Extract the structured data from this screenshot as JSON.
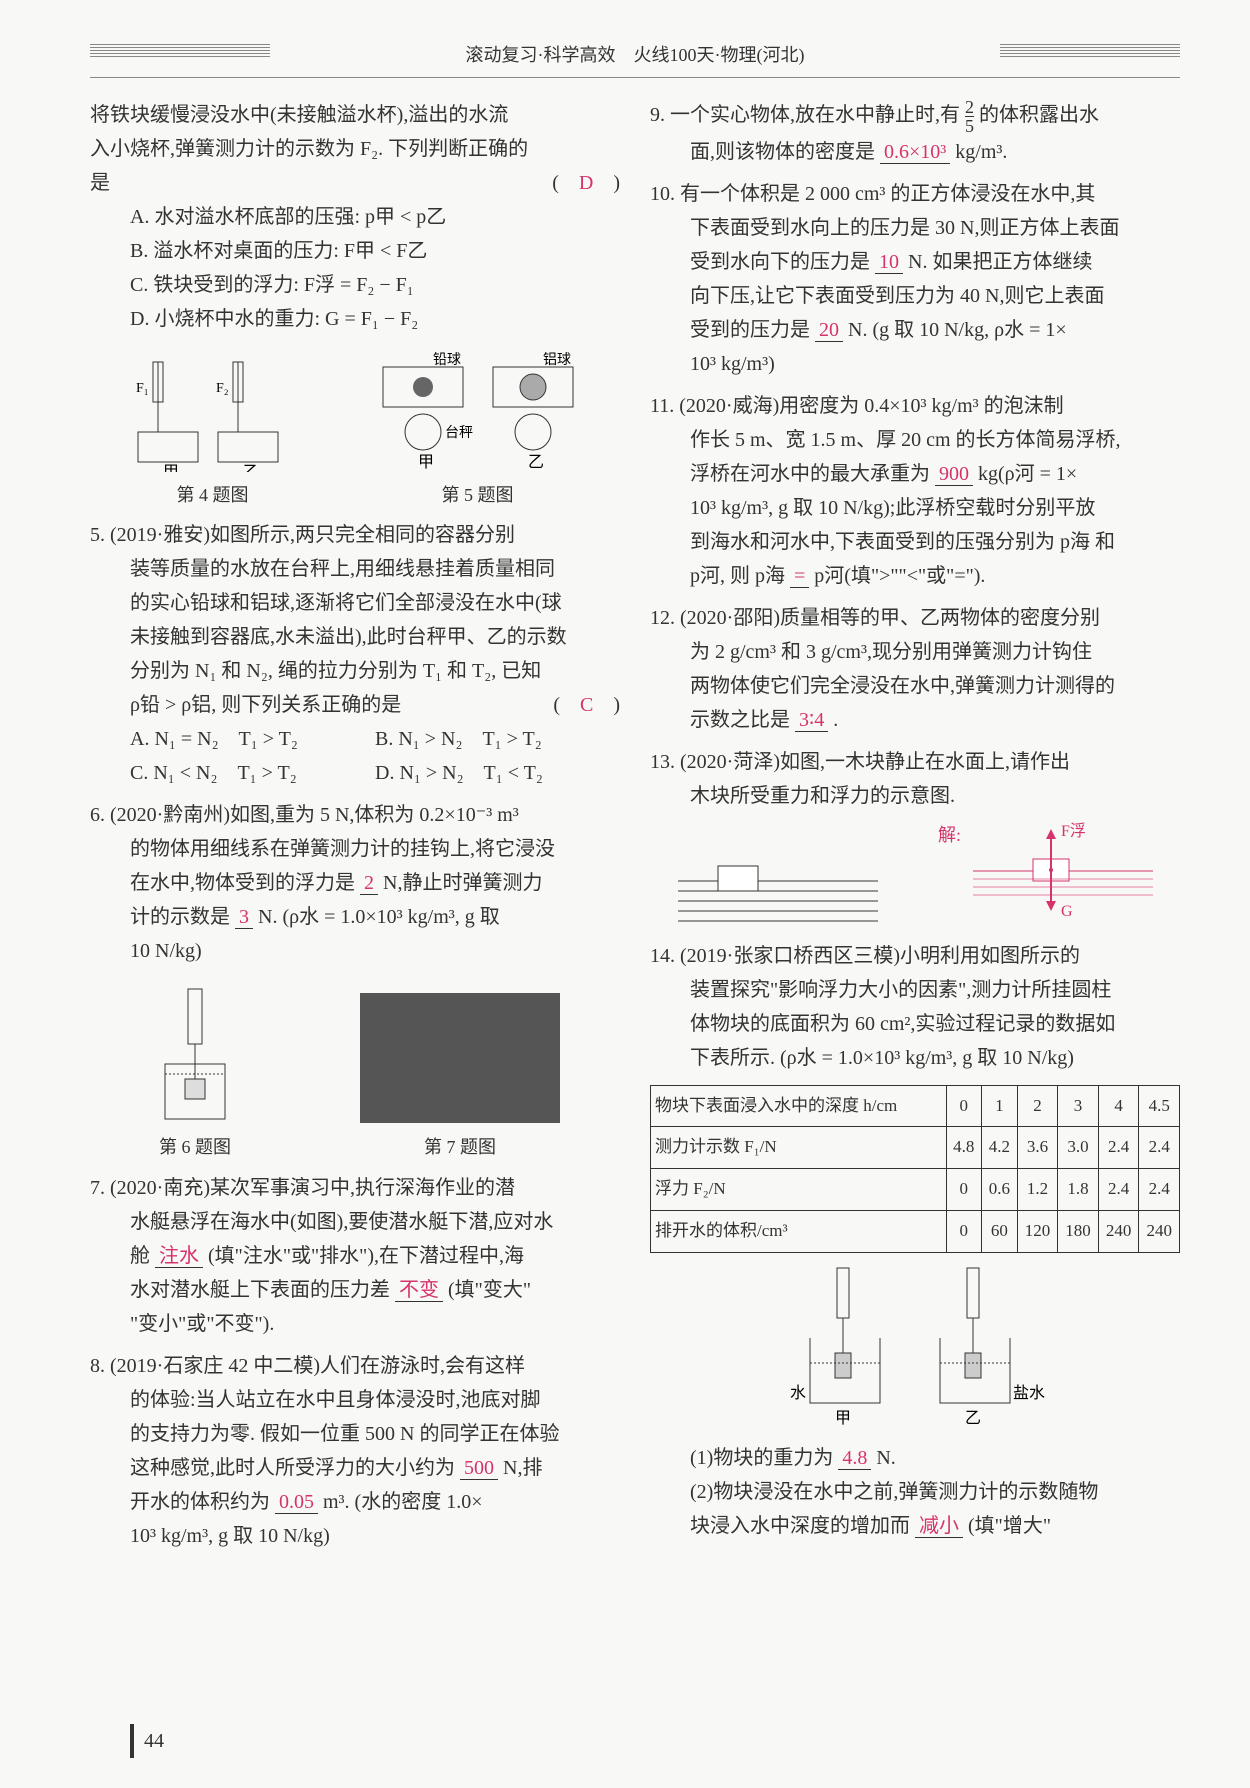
{
  "header": "滚动复习·科学高效　火线100天·物理(河北)",
  "page_number": "44",
  "colors": {
    "answer": "#d6336c",
    "text": "#333333",
    "bg": "#f8f8f6"
  },
  "typography": {
    "body_fontsize": 20,
    "table_fontsize": 17,
    "line_height": 1.7
  },
  "left": {
    "p4": {
      "stem1": "将铁块缓慢浸没水中(未接触溢水杯),溢出的水流",
      "stem2": "入小烧杯,弹簧测力计的示数为 F₂. 下列判断正确的",
      "stem3": "是",
      "answer": "D",
      "optA": "A. 水对溢水杯底部的压强: p甲 < p乙",
      "optB": "B. 溢水杯对桌面的压力: F甲 < F乙",
      "optC": "C. 铁块受到的浮力: F浮 = F₂ − F₁",
      "optD": "D. 小烧杯中水的重力: G = F₁ − F₂",
      "fig_label": "第 4 题图"
    },
    "p5_figlabel": "第 5 题图",
    "p5": {
      "src": "5. (2019·雅安)如图所示,两只完全相同的容器分别",
      "l2": "装等质量的水放在台秤上,用细线悬挂着质量相同",
      "l3": "的实心铅球和铝球,逐渐将它们全部浸没在水中(球",
      "l4": "未接触到容器底,水未溢出),此时台秤甲、乙的示数",
      "l5": "分别为 N₁ 和 N₂, 绳的拉力分别为 T₁ 和 T₂, 已知",
      "l6": "ρ铅 > ρ铝, 则下列关系正确的是",
      "answer": "C",
      "optA": "A. N₁ = N₂　T₁ > T₂",
      "optB": "B. N₁ > N₂　T₁ > T₂",
      "optC": "C. N₁ < N₂　T₁ > T₂",
      "optD": "D. N₁ > N₂　T₁ < T₂"
    },
    "p6": {
      "src": "6. (2020·黔南州)如图,重为 5 N,体积为 0.2×10⁻³ m³",
      "l2": "的物体用细线系在弹簧测力计的挂钩上,将它浸没",
      "l3_a": "在水中,物体受到的浮力是",
      "ans1": "2",
      "l3_b": "N,静止时弹簧测力",
      "l4_a": "计的示数是",
      "ans2": "3",
      "l4_b": "N. (ρ水 = 1.0×10³ kg/m³, g 取",
      "l5": "10 N/kg)",
      "fig_label": "第 6 题图",
      "fig_label2": "第 7 题图"
    },
    "p7": {
      "src": "7. (2020·南充)某次军事演习中,执行深海作业的潜",
      "l2": "水艇悬浮在海水中(如图),要使潜水艇下潜,应对水",
      "l3_a": "舱",
      "ans1": "注水",
      "l3_b": "(填\"注水\"或\"排水\"),在下潜过程中,海",
      "l4_a": "水对潜水艇上下表面的压力差",
      "ans2": "不变",
      "l4_b": "(填\"变大\"",
      "l5": "\"变小\"或\"不变\")."
    },
    "p8": {
      "src": "8. (2019·石家庄 42 中二模)人们在游泳时,会有这样",
      "l2": "的体验:当人站立在水中且身体浸没时,池底对脚",
      "l3": "的支持力为零. 假如一位重 500 N 的同学正在体验",
      "l4_a": "这种感觉,此时人所受浮力的大小约为",
      "ans1": "500",
      "l4_b": "N,排",
      "l5_a": "开水的体积约为",
      "ans2": "0.05",
      "l5_b": "m³. (水的密度 1.0×",
      "l6": "10³ kg/m³, g 取 10 N/kg)"
    }
  },
  "right": {
    "p9": {
      "src_a": "9. 一个实心物体,放在水中静止时,有",
      "frac_n": "2",
      "frac_d": "5",
      "src_b": "的体积露出水",
      "l2_a": "面,则该物体的密度是",
      "ans": "0.6×10³",
      "l2_b": "kg/m³."
    },
    "p10": {
      "src": "10. 有一个体积是 2 000 cm³ 的正方体浸没在水中,其",
      "l2": "下表面受到水向上的压力是 30 N,则正方体上表面",
      "l3_a": "受到水向下的压力是",
      "ans1": "10",
      "l3_b": "N. 如果把正方体继续",
      "l4": "向下压,让它下表面受到压力为 40 N,则它上表面",
      "l5_a": "受到的压力是",
      "ans2": "20",
      "l5_b": "N. (g 取 10 N/kg, ρ水 = 1×",
      "l6": "10³ kg/m³)"
    },
    "p11": {
      "src": "11. (2020·威海)用密度为 0.4×10³ kg/m³ 的泡沫制",
      "l2": "作长 5 m、宽 1.5 m、厚 20 cm 的长方体简易浮桥,",
      "l3_a": "浮桥在河水中的最大承重为",
      "ans1": "900",
      "l3_b": "kg(ρ河 = 1×",
      "l4": "10³ kg/m³, g 取 10 N/kg);此浮桥空载时分别平放",
      "l5": "到海水和河水中,下表面受到的压强分别为 p海 和",
      "l6_a": "p河, 则 p海",
      "ans2": "=",
      "l6_b": "p河(填\">\"\"<\"或\"=\")."
    },
    "p12": {
      "src": "12. (2020·邵阳)质量相等的甲、乙两物体的密度分别",
      "l2": "为 2 g/cm³ 和 3 g/cm³,现分别用弹簧测力计钩住",
      "l3": "两物体使它们完全浸没在水中,弹簧测力计测得的",
      "l4_a": "示数之比是",
      "ans": "3∶4",
      "l4_b": "."
    },
    "p13": {
      "src": "13. (2020·菏泽)如图,一木块静止在水面上,请作出",
      "l2": "木块所受重力和浮力的示意图.",
      "sol_label": "解:",
      "force_up": "F浮",
      "force_down": "G"
    },
    "p14": {
      "src": "14. (2019·张家口桥西区三模)小明利用如图所示的",
      "l2": "装置探究\"影响浮力大小的因素\",测力计所挂圆柱",
      "l3": "体物块的底面积为 60 cm²,实验过程记录的数据如",
      "l4": "下表所示. (ρ水 = 1.0×10³ kg/m³, g 取 10 N/kg)",
      "table": {
        "rows": [
          {
            "label": "物块下表面浸入水中的深度 h/cm",
            "vals": [
              "0",
              "1",
              "2",
              "3",
              "4",
              "4.5"
            ]
          },
          {
            "label": "测力计示数 F₁/N",
            "vals": [
              "4.8",
              "4.2",
              "3.6",
              "3.0",
              "2.4",
              "2.4"
            ]
          },
          {
            "label": "浮力 F₂/N",
            "vals": [
              "0",
              "0.6",
              "1.2",
              "1.8",
              "2.4",
              "2.4"
            ]
          },
          {
            "label": "排开水的体积/cm³",
            "vals": [
              "0",
              "60",
              "120",
              "180",
              "240",
              "240"
            ]
          }
        ],
        "col_count": 7,
        "border_color": "#333333"
      },
      "fig_labels": {
        "left": "水",
        "l2": "甲",
        "right": "盐水",
        "r2": "乙"
      },
      "q1_a": "(1)物块的重力为",
      "q1_ans": "4.8",
      "q1_b": "N.",
      "q2": "(2)物块浸没在水中之前,弹簧测力计的示数随物",
      "q2_l2_a": "块浸入水中深度的增加而",
      "q2_ans": "减小",
      "q2_l2_b": "(填\"增大\""
    }
  }
}
